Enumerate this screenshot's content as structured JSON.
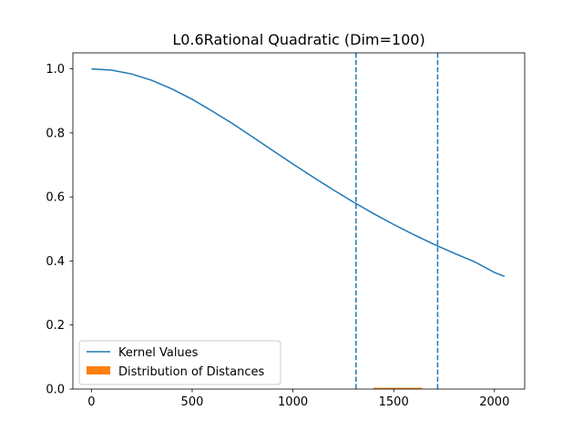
{
  "chart_data": {
    "type": "line",
    "title": "L0.6Rational Quadratic (Dim=100)",
    "xlabel": "",
    "ylabel": "",
    "xlim": [
      -92,
      2150
    ],
    "ylim": [
      0.0,
      1.05
    ],
    "x_ticks": [
      0,
      500,
      1000,
      1500,
      2000
    ],
    "y_ticks": [
      0.0,
      0.2,
      0.4,
      0.6,
      0.8,
      1.0
    ],
    "x_tick_labels": [
      "0",
      "500",
      "1000",
      "1500",
      "2000"
    ],
    "y_tick_labels": [
      "0.0",
      "0.2",
      "0.4",
      "0.6",
      "0.8",
      "1.0"
    ],
    "grid": false,
    "legend_position": "lower-left",
    "series": [
      {
        "name": "Kernel Values",
        "kind": "line",
        "color": "#1f77b4",
        "x": [
          0,
          100,
          200,
          300,
          400,
          500,
          600,
          700,
          800,
          900,
          1000,
          1100,
          1200,
          1300,
          1400,
          1500,
          1600,
          1700,
          1800,
          1900,
          2000,
          2050
        ],
        "y": [
          1.0,
          0.996,
          0.984,
          0.964,
          0.937,
          0.905,
          0.868,
          0.829,
          0.787,
          0.745,
          0.703,
          0.662,
          0.622,
          0.584,
          0.548,
          0.514,
          0.482,
          0.452,
          0.424,
          0.398,
          0.364,
          0.352
        ]
      },
      {
        "name": "Distribution of Distances",
        "kind": "histogram",
        "color": "#ff7f0e",
        "bins": [
          {
            "x0": 1400,
            "x1": 1450,
            "height": 0.004
          },
          {
            "x0": 1450,
            "x1": 1500,
            "height": 0.004
          },
          {
            "x0": 1500,
            "x1": 1550,
            "height": 0.004
          },
          {
            "x0": 1550,
            "x1": 1600,
            "height": 0.004
          },
          {
            "x0": 1600,
            "x1": 1640,
            "height": 0.004
          }
        ]
      }
    ],
    "vlines": [
      {
        "x": 1313,
        "color": "#1f77b4",
        "style": "dashed"
      },
      {
        "x": 1718,
        "color": "#1f77b4",
        "style": "dashed"
      }
    ]
  }
}
